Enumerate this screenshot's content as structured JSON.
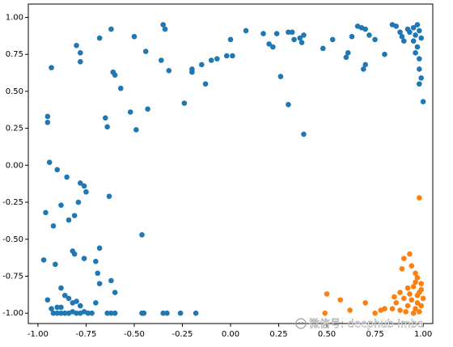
{
  "chart_data": {
    "type": "scatter",
    "xlim": [
      -1.05,
      1.05
    ],
    "ylim": [
      -1.07,
      1.09
    ],
    "xticks": [
      {
        "value": -1,
        "label": "-1.00"
      },
      {
        "value": -0.75,
        "label": "-0.75"
      },
      {
        "value": -0.5,
        "label": "-0.50"
      },
      {
        "value": -0.25,
        "label": "-0.25"
      },
      {
        "value": 0,
        "label": "0.00"
      },
      {
        "value": 0.25,
        "label": "0.25"
      },
      {
        "value": 0.5,
        "label": "0.50"
      },
      {
        "value": 0.75,
        "label": "0.75"
      },
      {
        "value": 1,
        "label": "1.00"
      }
    ],
    "yticks": [
      {
        "value": -1,
        "label": "-1.00"
      },
      {
        "value": -0.75,
        "label": "-0.75"
      },
      {
        "value": -0.5,
        "label": "-0.50"
      },
      {
        "value": -0.25,
        "label": "-0.25"
      },
      {
        "value": 0,
        "label": "0.00"
      },
      {
        "value": 0.25,
        "label": "0.25"
      },
      {
        "value": 0.5,
        "label": "0.50"
      },
      {
        "value": 0.75,
        "label": "0.75"
      },
      {
        "value": 1,
        "label": "1.00"
      }
    ],
    "series": [
      {
        "color": "#1f77b4",
        "x": [
          -0.62,
          -0.68,
          -0.5,
          -0.35,
          -0.34,
          -0.8,
          -0.78,
          -0.78,
          -0.93,
          -0.44,
          -0.36,
          -0.32,
          -0.61,
          -0.6,
          -0.57,
          -0.43,
          -0.52,
          -0.65,
          -0.64,
          -0.49,
          -0.24,
          -0.2,
          -0.2,
          -0.15,
          -0.1,
          -0.13,
          -0.07,
          -0.02,
          0.01,
          0.0,
          0.08,
          0.17,
          0.2,
          0.22,
          0.24,
          0.3,
          0.32,
          0.33,
          0.36,
          0.37,
          0.38,
          0.26,
          0.3,
          0.38,
          0.48,
          0.53,
          0.6,
          0.61,
          0.63,
          0.66,
          0.68,
          0.7,
          0.72,
          0.75,
          0.69,
          0.7,
          0.8,
          0.84,
          0.86,
          0.88,
          0.89,
          0.9,
          0.92,
          0.93,
          0.95,
          0.96,
          0.97,
          0.98,
          0.98,
          0.99,
          0.98,
          1.0,
          0.97,
          0.99,
          0.95,
          0.96,
          0.98,
          -0.95,
          -0.95,
          -0.94,
          -0.9,
          -0.85,
          -0.78,
          -0.76,
          -0.79,
          -0.75,
          -0.84,
          -0.81,
          -0.92,
          -0.96,
          -0.88,
          -0.82,
          -0.81,
          -0.76,
          -0.97,
          -0.91,
          -0.63,
          -0.68,
          -0.7,
          -0.69,
          -0.62,
          -0.6,
          -0.68,
          -0.7,
          -0.88,
          -0.86,
          -0.84,
          -0.82,
          -0.78,
          -0.95,
          -0.93,
          -0.9,
          -0.88,
          -0.8,
          -0.46,
          -0.92,
          -0.9,
          -0.88,
          -0.86,
          -0.84,
          -0.82,
          -0.8,
          -0.78,
          -0.76,
          -0.74,
          -0.72,
          -0.64,
          -0.62,
          -0.6,
          -0.46,
          -0.45,
          -0.35,
          -0.33,
          -0.26,
          -0.18
        ],
        "values": [
          0.92,
          0.86,
          0.87,
          0.95,
          0.92,
          0.81,
          0.76,
          0.7,
          0.66,
          0.77,
          0.71,
          0.64,
          0.63,
          0.61,
          0.52,
          0.38,
          0.36,
          0.32,
          0.26,
          0.24,
          0.42,
          0.65,
          0.63,
          0.68,
          0.71,
          0.55,
          0.72,
          0.74,
          0.74,
          0.85,
          0.91,
          0.89,
          0.82,
          0.8,
          0.89,
          0.9,
          0.9,
          0.85,
          0.86,
          0.83,
          0.88,
          0.6,
          0.41,
          0.21,
          0.79,
          0.85,
          0.73,
          0.76,
          0.87,
          0.94,
          0.93,
          0.92,
          0.88,
          0.85,
          0.65,
          0.68,
          0.75,
          0.95,
          0.94,
          0.9,
          0.87,
          0.84,
          0.92,
          0.9,
          0.93,
          0.88,
          0.8,
          0.72,
          0.65,
          0.59,
          0.55,
          0.43,
          0.95,
          0.86,
          0.84,
          0.76,
          0.91,
          0.33,
          0.29,
          0.02,
          -0.03,
          -0.08,
          -0.12,
          -0.14,
          -0.25,
          -0.18,
          -0.37,
          -0.34,
          -0.41,
          -0.32,
          -0.27,
          -0.58,
          -0.6,
          -0.63,
          -0.64,
          -0.67,
          -0.21,
          -0.56,
          -0.65,
          -0.73,
          -0.78,
          -0.86,
          -0.8,
          -0.93,
          -0.83,
          -0.88,
          -0.9,
          -0.93,
          -0.95,
          -0.91,
          -0.97,
          -0.96,
          -0.96,
          -0.92,
          -0.47,
          -1.0,
          -1.0,
          -1.0,
          -1.0,
          -1.0,
          -0.99,
          -1.0,
          -1.0,
          -0.99,
          -1.0,
          -1.0,
          -1.0,
          -1.0,
          -1.0,
          -1.0,
          -1.0,
          -1.0,
          -1.0,
          -1.0,
          -1.0
        ]
      },
      {
        "color": "#ff7f0e",
        "x": [
          0.98,
          0.93,
          0.9,
          0.94,
          0.89,
          0.96,
          0.97,
          0.99,
          0.92,
          0.95,
          0.98,
          0.88,
          0.9,
          0.94,
          0.97,
          0.99,
          0.96,
          0.92,
          0.86,
          0.84,
          0.88,
          0.91,
          0.95,
          0.98,
          0.8,
          0.78,
          0.75,
          0.7,
          0.62,
          0.5,
          0.49,
          0.57,
          0.85,
          0.93,
          0.97,
          1.0,
          0.99,
          0.96
        ],
        "values": [
          -0.22,
          -0.6,
          -0.63,
          -0.68,
          -0.7,
          -0.73,
          -0.76,
          -0.8,
          -0.83,
          -0.82,
          -0.86,
          -0.86,
          -0.9,
          -0.91,
          -0.93,
          -0.95,
          -0.97,
          -0.95,
          -0.93,
          -0.97,
          -0.98,
          -0.99,
          -1.0,
          -0.99,
          -0.97,
          -0.98,
          -1.0,
          -0.93,
          -0.98,
          -0.87,
          -1.0,
          -0.91,
          -0.89,
          -0.87,
          -0.88,
          -0.9,
          -0.84,
          -0.79
        ]
      }
    ],
    "watermark": "微信号: deephub-imba"
  }
}
